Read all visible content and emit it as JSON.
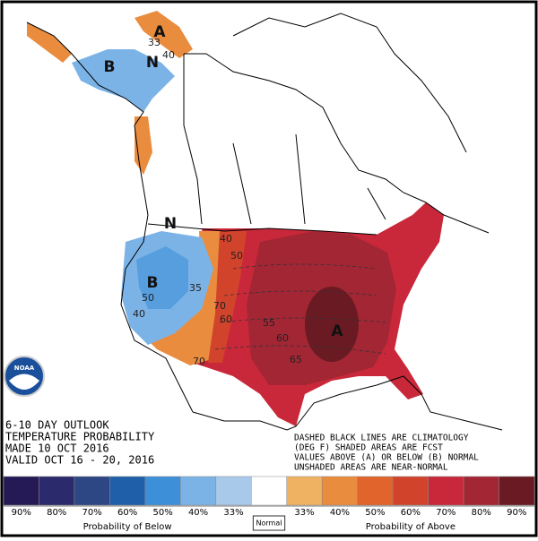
{
  "title_lines": [
    "6-10 DAY OUTLOOK",
    "TEMPERATURE PROBABILITY",
    "MADE  10 OCT 2016",
    "VALID  OCT 16 - 20, 2016"
  ],
  "note_lines": [
    "DASHED BLACK LINES ARE CLIMATOLOGY",
    "(DEG F) SHADED AREAS ARE FCST",
    "VALUES ABOVE (A) OR BELOW (B) NORMAL",
    "UNSHADED AREAS ARE NEAR-NORMAL"
  ],
  "logo": "NOAA",
  "map_labels": [
    "A",
    "33",
    "40",
    "N",
    "B",
    "B",
    "50",
    "40",
    "N",
    "40",
    "50",
    "35",
    "70",
    "60",
    "70",
    "55",
    "60",
    "65",
    "A"
  ],
  "legend": {
    "below": [
      {
        "label": "90%",
        "color": "#251a55"
      },
      {
        "label": "80%",
        "color": "#2b2a6c"
      },
      {
        "label": "70%",
        "color": "#2d4684"
      },
      {
        "label": "60%",
        "color": "#1f5ea8"
      },
      {
        "label": "50%",
        "color": "#3d8fd8"
      },
      {
        "label": "40%",
        "color": "#7cb3e6"
      },
      {
        "label": "33%",
        "color": "#a9c9ea"
      }
    ],
    "normal": {
      "label": "Normal",
      "color": "#ffffff"
    },
    "above": [
      {
        "label": "33%",
        "color": "#efb262"
      },
      {
        "label": "40%",
        "color": "#ea8c3e"
      },
      {
        "label": "50%",
        "color": "#e1642c"
      },
      {
        "label": "60%",
        "color": "#d2432c"
      },
      {
        "label": "70%",
        "color": "#c9283a"
      },
      {
        "label": "80%",
        "color": "#a22634"
      },
      {
        "label": "90%",
        "color": "#6a1a22"
      }
    ],
    "below_title": "Probability of Below",
    "above_title": "Probability of Above"
  }
}
